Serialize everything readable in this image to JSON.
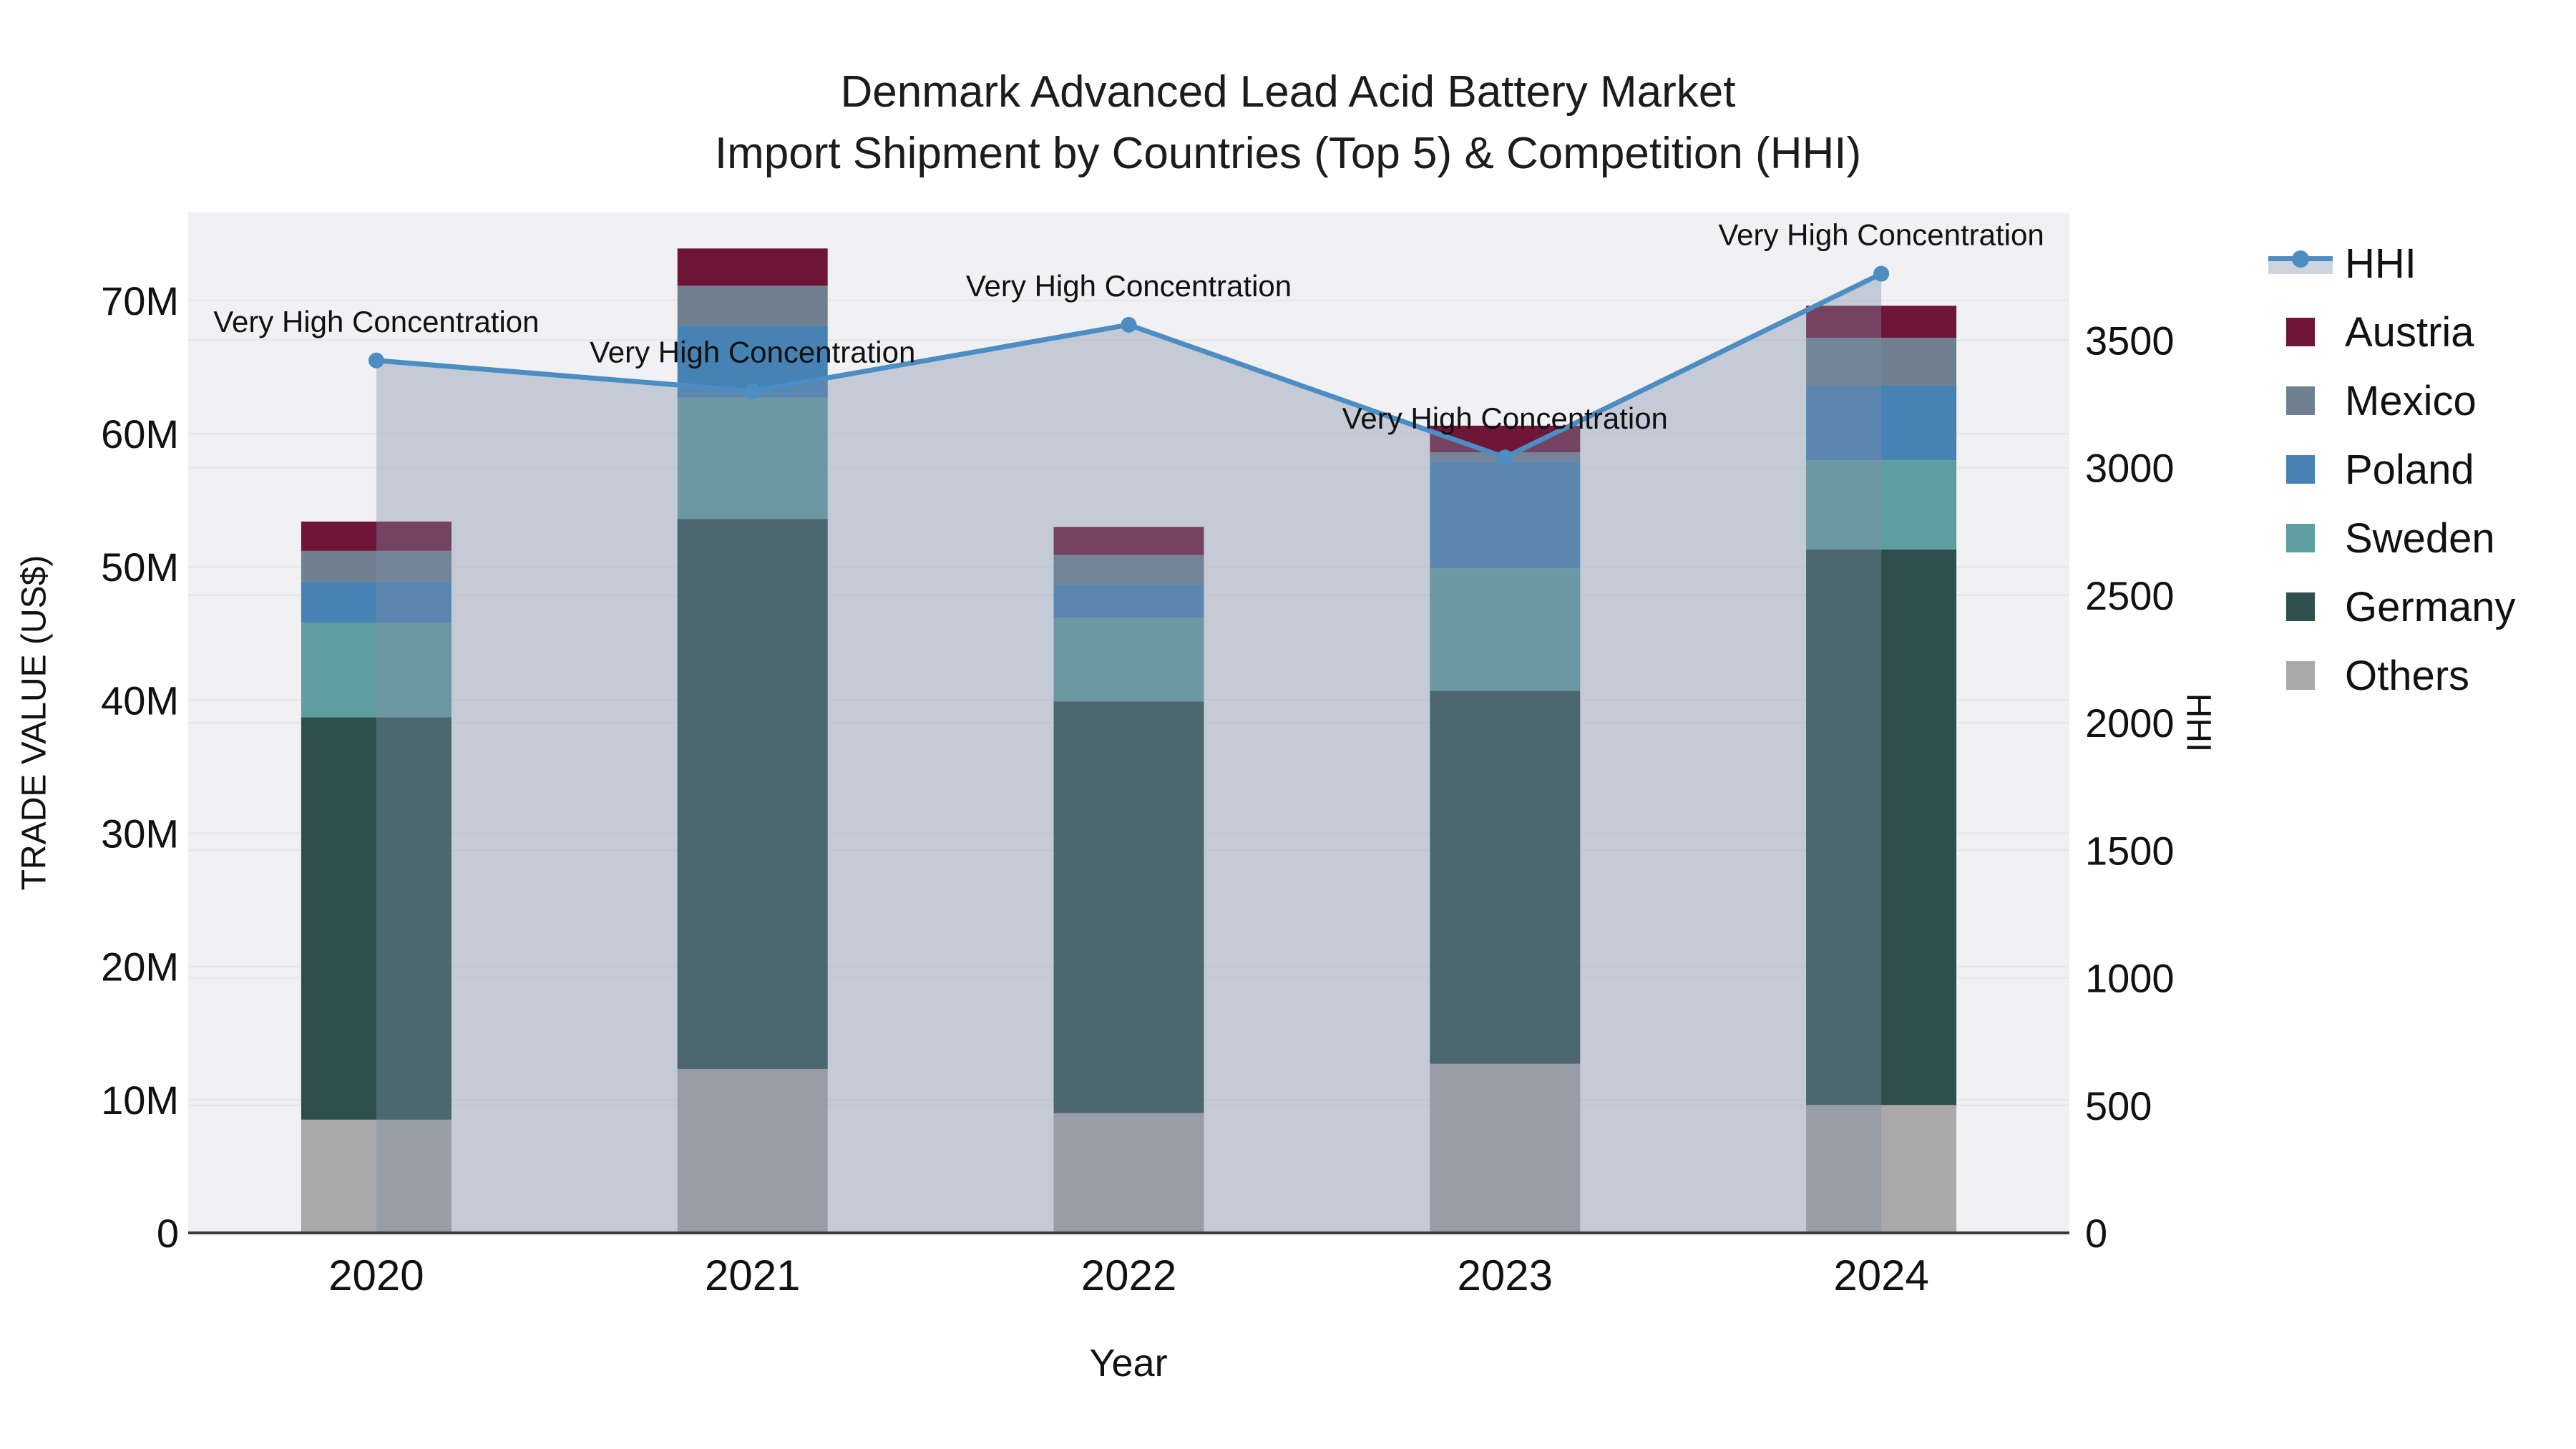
{
  "title": {
    "line1": "Denmark Advanced Lead Acid Battery Market",
    "line2": "Import Shipment by Countries (Top 5) & Competition (HHI)"
  },
  "axes": {
    "x": {
      "title": "Year",
      "tick_labels": [
        "2020",
        "2021",
        "2022",
        "2023",
        "2024"
      ]
    },
    "y_left": {
      "title": "TRADE VALUE (US$)",
      "tick_labels": [
        "0",
        "10M",
        "20M",
        "30M",
        "40M",
        "50M",
        "60M",
        "70M"
      ],
      "tick_values": [
        0,
        10,
        20,
        30,
        40,
        50,
        60,
        70
      ]
    },
    "y_right": {
      "title": "HHI",
      "tick_labels": [
        "0",
        "500",
        "1000",
        "1500",
        "2000",
        "2500",
        "3000",
        "3500"
      ],
      "tick_values": [
        0,
        500,
        1000,
        1500,
        2000,
        2500,
        3000,
        3500
      ]
    }
  },
  "legend": {
    "position": "right",
    "items": [
      {
        "label": "HHI",
        "type": "area-line",
        "symbol": "hhi-area-line-swatch"
      },
      {
        "label": "Austria",
        "type": "bar",
        "color": "#6E1538"
      },
      {
        "label": "Mexico",
        "type": "bar",
        "color": "#708090"
      },
      {
        "label": "Poland",
        "type": "bar",
        "color": "#4682B4"
      },
      {
        "label": "Sweden",
        "type": "bar",
        "color": "#5F9EA0"
      },
      {
        "label": "Germany",
        "type": "bar",
        "color": "#2F4F4F"
      },
      {
        "label": "Others",
        "type": "bar",
        "color": "#A9A9A9"
      }
    ]
  },
  "annotation_text": "Very High Concentration",
  "colors": {
    "plot_background": "#F1F1F3",
    "gridline": "#E6E6EA",
    "axis_line": "#3C3C40",
    "hhi_line": "#4C8DC4",
    "hhi_fill": "rgba(125,142,168,0.38)",
    "text": "#111111"
  },
  "chart_data": {
    "type": "bar",
    "subtype": "stacked bars (left axis, US$ M) + HHI line with area fill (right axis)",
    "categories": [
      "2020",
      "2021",
      "2022",
      "2023",
      "2024"
    ],
    "stack_order_bottom_to_top": [
      "Others",
      "Germany",
      "Sweden",
      "Poland",
      "Mexico",
      "Austria"
    ],
    "series": [
      {
        "name": "Austria",
        "axis": "left",
        "color": "#6E1538",
        "values": [
          2.2,
          2.8,
          2.1,
          2.0,
          2.4
        ]
      },
      {
        "name": "Mexico",
        "axis": "left",
        "color": "#708090",
        "values": [
          2.3,
          3.0,
          2.2,
          0.7,
          3.6
        ]
      },
      {
        "name": "Poland",
        "axis": "left",
        "color": "#4682B4",
        "values": [
          3.1,
          5.4,
          2.5,
          8.0,
          5.6
        ]
      },
      {
        "name": "Sweden",
        "axis": "left",
        "color": "#5F9EA0",
        "values": [
          7.1,
          9.1,
          6.3,
          9.2,
          6.7
        ]
      },
      {
        "name": "Germany",
        "axis": "left",
        "color": "#2F4F4F",
        "values": [
          30.2,
          41.3,
          30.9,
          28.0,
          41.7
        ]
      },
      {
        "name": "Others",
        "axis": "left",
        "color": "#A9A9A9",
        "values": [
          8.5,
          12.3,
          9.0,
          12.7,
          9.6
        ]
      }
    ],
    "bar_totals": [
      53.4,
      73.9,
      53.0,
      60.6,
      69.6
    ],
    "hhi_series": {
      "name": "HHI",
      "axis": "right",
      "values": [
        3420,
        3300,
        3560,
        3040,
        3760
      ],
      "point_annotations": [
        "Very High Concentration",
        "Very High Concentration",
        "Very High Concentration",
        "Very High Concentration",
        "Very High Concentration"
      ]
    },
    "title": "Denmark Advanced Lead Acid Battery Market Import Shipment by Countries (Top 5) & Competition (HHI)",
    "xlabel": "Year",
    "ylabel_left": "TRADE VALUE (US$)",
    "ylabel_right": "HHI",
    "ylim_left": [
      0,
      76.6
    ],
    "ylim_right": [
      0,
      4000
    ],
    "grid": true,
    "legend_position": "right"
  }
}
